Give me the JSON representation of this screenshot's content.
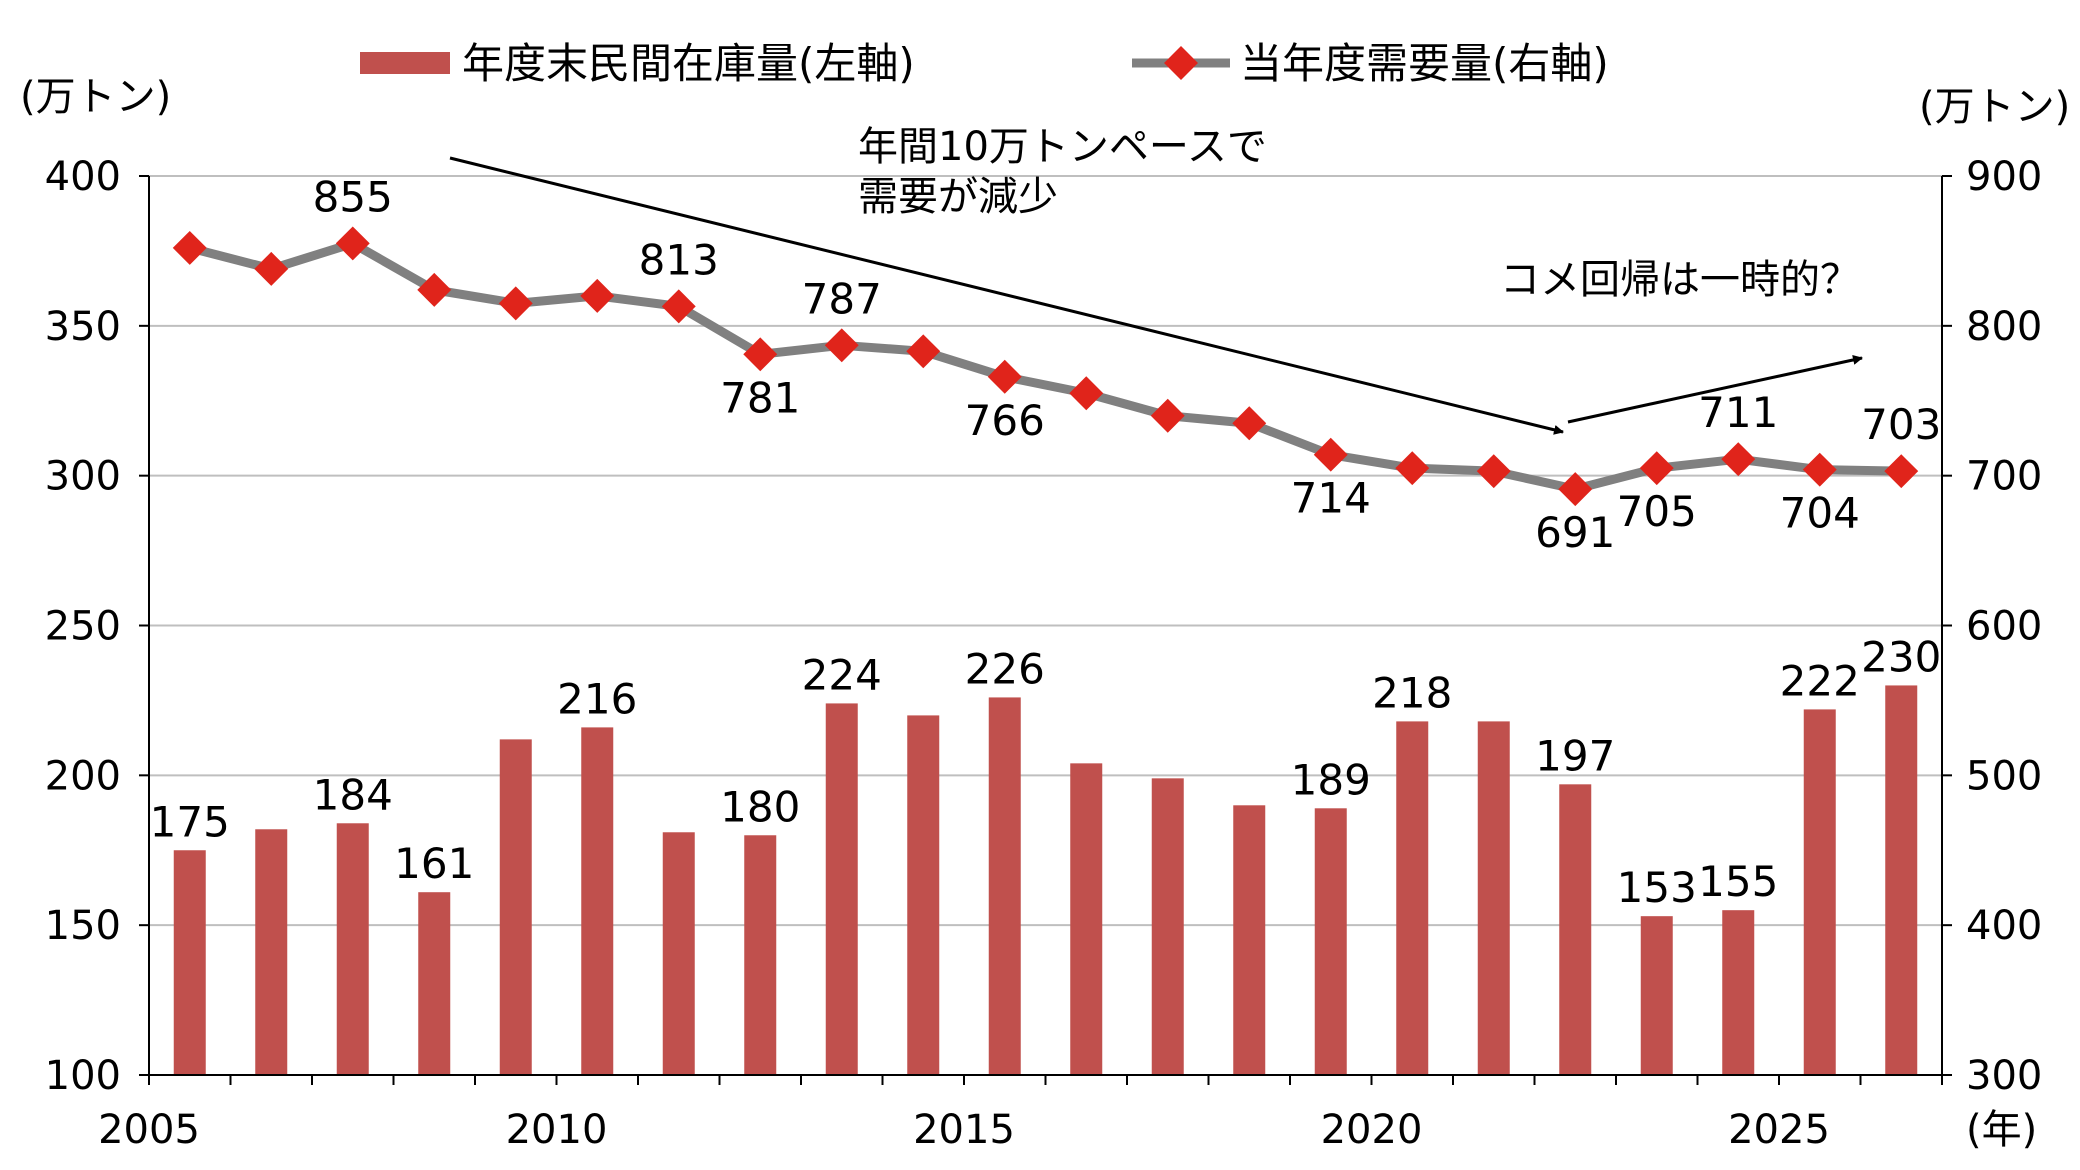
{
  "chart_data": {
    "type": "bar+line",
    "x": [
      2005,
      2006,
      2007,
      2008,
      2009,
      2010,
      2011,
      2012,
      2013,
      2014,
      2015,
      2016,
      2017,
      2018,
      2019,
      2020,
      2021,
      2022,
      2023,
      2024,
      2025,
      2026
    ],
    "x_axis": {
      "range": [
        2005,
        2027
      ],
      "ticks": [
        "2005",
        "2010",
        "2015",
        "2020",
        "2025"
      ],
      "unit_label": "(年)"
    },
    "left_axis": {
      "unit_label": "(万トン)",
      "range": [
        100,
        400
      ],
      "ticks": [
        "100",
        "150",
        "200",
        "250",
        "300",
        "350",
        "400"
      ]
    },
    "right_axis": {
      "unit_label": "(万トン)",
      "range": [
        300,
        900
      ],
      "ticks": [
        "300",
        "400",
        "500",
        "600",
        "700",
        "800",
        "900"
      ]
    },
    "grid": "horizontal",
    "series": [
      {
        "name": "年度末民間在庫量(左軸)",
        "kind": "bar",
        "axis": "left",
        "color": "#C0504D",
        "values": [
          175,
          182,
          184,
          161,
          212,
          216,
          181,
          180,
          224,
          220,
          226,
          204,
          199,
          190,
          189,
          218,
          218,
          197,
          153,
          155,
          222,
          230
        ],
        "labels": [
          "175",
          "",
          "184",
          "161",
          "",
          "216",
          "",
          "180",
          "224",
          "",
          "226",
          "",
          "",
          "",
          "189",
          "218",
          "",
          "197",
          "153",
          "155",
          "222",
          "230"
        ]
      },
      {
        "name": "当年度需要量(右軸)",
        "kind": "line",
        "axis": "right",
        "line_color": "#808080",
        "marker_color": "#E0241B",
        "values": [
          852,
          838,
          855,
          824,
          815,
          820,
          813,
          781,
          787,
          783,
          766,
          755,
          740,
          735,
          714,
          705,
          703,
          691,
          705,
          711,
          704,
          703
        ],
        "labels": [
          "",
          "",
          "855",
          "",
          "",
          "",
          "813",
          "781",
          "787",
          "",
          "766",
          "",
          "",
          "",
          "714",
          "",
          "",
          "691",
          "705",
          "711",
          "704",
          "703"
        ]
      }
    ],
    "legend": "top",
    "annotations": [
      "年間10万トンペースで",
      "需要が減少",
      "コメ回帰は一時的？"
    ]
  }
}
